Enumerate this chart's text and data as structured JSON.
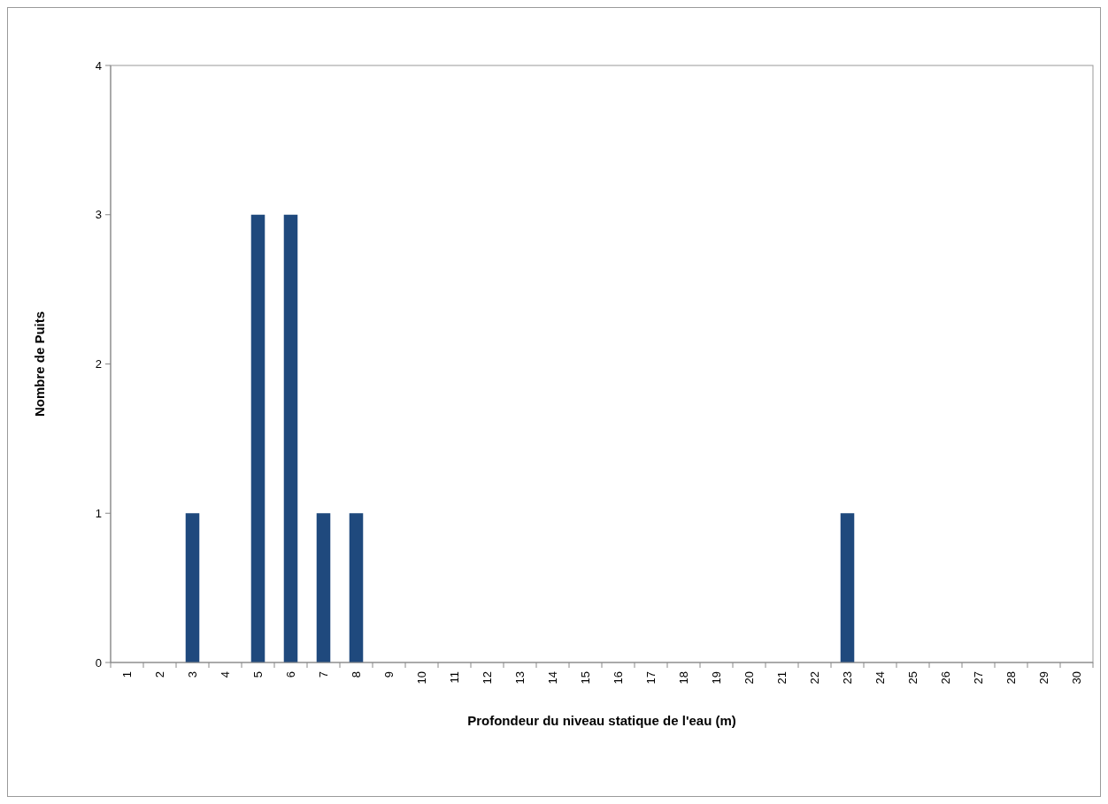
{
  "chart_data": {
    "type": "bar",
    "xlabel": "Profondeur du niveau statique de l'eau (m)",
    "ylabel": "Nombre de Puits",
    "categories": [
      "1",
      "2",
      "3",
      "4",
      "5",
      "6",
      "7",
      "8",
      "9",
      "10",
      "11",
      "12",
      "13",
      "14",
      "15",
      "16",
      "17",
      "18",
      "19",
      "20",
      "21",
      "22",
      "23",
      "24",
      "25",
      "26",
      "27",
      "28",
      "29",
      "30"
    ],
    "values": [
      0,
      0,
      1,
      0,
      3,
      3,
      1,
      1,
      0,
      0,
      0,
      0,
      0,
      0,
      0,
      0,
      0,
      0,
      0,
      0,
      0,
      0,
      1,
      0,
      0,
      0,
      0,
      0,
      0,
      0
    ],
    "color": "#1f497d",
    "ylim": [
      0,
      4
    ],
    "yticks": [
      0,
      1,
      2,
      3,
      4
    ],
    "grid": false
  }
}
